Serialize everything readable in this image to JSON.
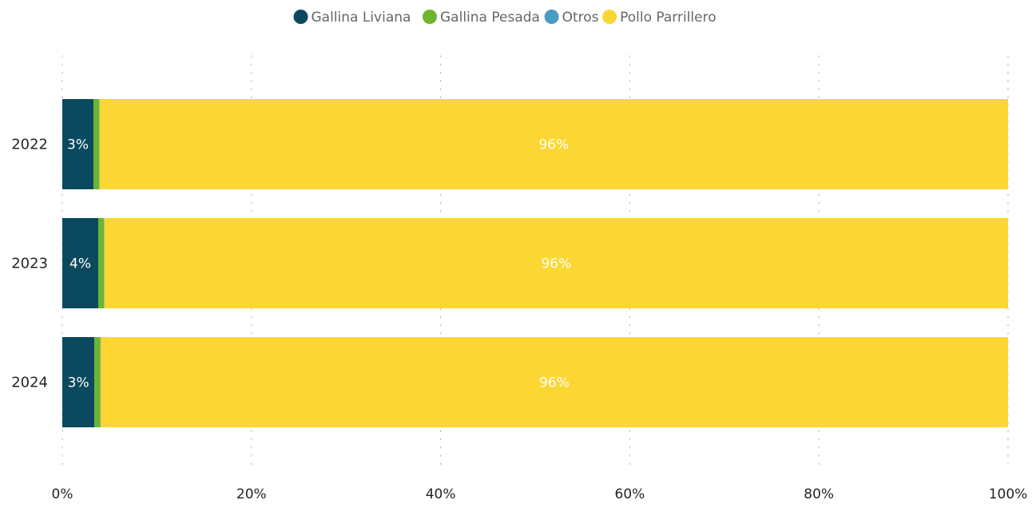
{
  "chart_data": {
    "type": "bar",
    "orientation": "horizontal",
    "stacked": "100%",
    "title": "",
    "xlabel": "",
    "ylabel": "",
    "categories": [
      "2022",
      "2023",
      "2024"
    ],
    "series": [
      {
        "name": "Gallina Liviana",
        "color": "#0B4A5E",
        "values": [
          3.3,
          3.8,
          3.4
        ],
        "labels": [
          "3%",
          "4%",
          "3%"
        ]
      },
      {
        "name": "Gallina Pesada",
        "color": "#6DB52E",
        "values": [
          0.6,
          0.6,
          0.6
        ],
        "labels": [
          "",
          "",
          ""
        ]
      },
      {
        "name": "Otros",
        "color": "#4A9BC2",
        "values": [
          0.05,
          0.05,
          0.05
        ],
        "labels": [
          "",
          "",
          ""
        ]
      },
      {
        "name": "Pollo Parrillero",
        "color": "#FCD733",
        "values": [
          96.05,
          95.55,
          95.95
        ],
        "labels": [
          "96%",
          "96%",
          "96%"
        ]
      }
    ],
    "x_ticks": [
      "0%",
      "20%",
      "40%",
      "60%",
      "80%",
      "100%"
    ],
    "xlim": [
      0,
      100
    ],
    "grid": "vertical dotted",
    "legend_position": "top-center"
  }
}
